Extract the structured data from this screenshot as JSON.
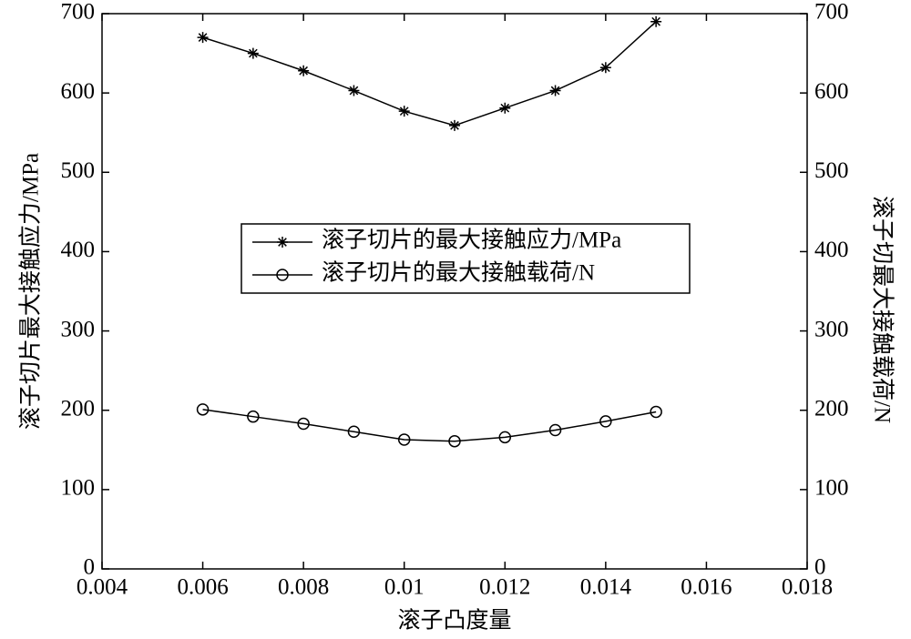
{
  "chart_data": {
    "type": "line",
    "x_label": "滚子凸度量",
    "y_label": "滚子切片最大接触应力/MPa",
    "y2_label": "滚子切最大接触载荷/N",
    "x": [
      0.006,
      0.007,
      0.008,
      0.009,
      0.01,
      0.011,
      0.012,
      0.013,
      0.014,
      0.015
    ],
    "series": [
      {
        "name": "滚子切片的最大接触应力/MPa",
        "color": "#000000",
        "marker": "asterisk",
        "values": [
          670,
          650,
          628,
          603,
          577,
          559,
          581,
          603,
          632,
          690
        ]
      },
      {
        "name": "滚子切片的最大接触载荷/N",
        "color": "#000000",
        "marker": "circle",
        "axis": "y2",
        "values": [
          201,
          192,
          183,
          173,
          163,
          161,
          166,
          175,
          186,
          198
        ]
      }
    ],
    "xlim": [
      0.004,
      0.018
    ],
    "xticks": [
      0.004,
      0.006,
      0.008,
      0.01,
      0.012,
      0.014,
      0.016,
      0.018
    ],
    "ylim": [
      0,
      700
    ],
    "yticks": [
      0,
      100,
      200,
      300,
      400,
      500,
      600,
      700
    ],
    "y2lim": [
      0,
      700
    ],
    "y2ticks": [
      0,
      100,
      200,
      300,
      400,
      500,
      600,
      700
    ],
    "legend": "center"
  }
}
